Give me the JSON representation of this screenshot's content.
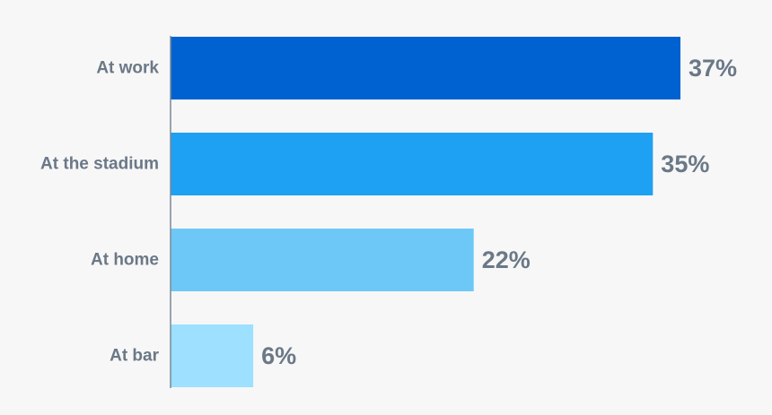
{
  "chart_data": {
    "type": "bar",
    "orientation": "horizontal",
    "categories": [
      "At work",
      "At the stadium",
      "At home",
      "At bar"
    ],
    "values": [
      37,
      35,
      22,
      6
    ],
    "value_labels": [
      "37%",
      "35%",
      "22%",
      "6%"
    ],
    "colors": [
      "#0062d1",
      "#1ea1f3",
      "#6ec8f7",
      "#9de0ff"
    ],
    "xlim": [
      0,
      37
    ],
    "grid": false,
    "legend": "none"
  }
}
